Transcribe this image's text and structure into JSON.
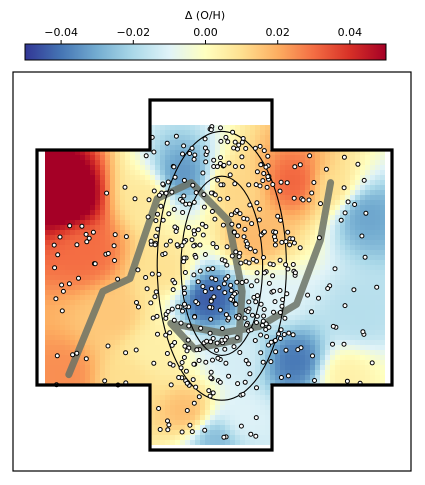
{
  "chart_data": {
    "type": "heatmap",
    "colorbar": {
      "label": "Δ (O/H)",
      "range": [
        -0.05,
        0.05
      ],
      "ticks": [
        -0.04,
        -0.02,
        0.0,
        0.02,
        0.04
      ],
      "tick_labels": [
        "−0.04",
        "−0.02",
        "0.00",
        "0.02",
        "0.04"
      ],
      "colormap": "RdYlBu_r",
      "placement": "top"
    },
    "axes": {
      "frame": true,
      "ticks": false,
      "grid": false
    },
    "field_sources": [
      {
        "x": 0.06,
        "y": 0.78,
        "v": 0.06
      },
      {
        "x": 0.12,
        "y": 0.6,
        "v": 0.03
      },
      {
        "x": 0.06,
        "y": 0.22,
        "v": 0.025
      },
      {
        "x": 0.2,
        "y": 0.4,
        "v": 0.015
      },
      {
        "x": 0.3,
        "y": 0.78,
        "v": 0.008
      },
      {
        "x": 0.4,
        "y": 0.84,
        "v": -0.035
      },
      {
        "x": 0.56,
        "y": 0.8,
        "v": 0.012
      },
      {
        "x": 0.74,
        "y": 0.82,
        "v": 0.032
      },
      {
        "x": 0.84,
        "y": 0.8,
        "v": 0.01
      },
      {
        "x": 0.94,
        "y": 0.72,
        "v": -0.032
      },
      {
        "x": 0.92,
        "y": 0.4,
        "v": -0.018
      },
      {
        "x": 0.88,
        "y": 0.22,
        "v": 0.005
      },
      {
        "x": 0.74,
        "y": 0.26,
        "v": -0.04
      },
      {
        "x": 0.48,
        "y": 0.46,
        "v": -0.045
      },
      {
        "x": 0.36,
        "y": 0.54,
        "v": 0.01
      },
      {
        "x": 0.62,
        "y": 0.64,
        "v": 0.018
      },
      {
        "x": 0.32,
        "y": 0.3,
        "v": 0.005
      },
      {
        "x": 0.56,
        "y": 0.28,
        "v": -0.012
      },
      {
        "x": 0.58,
        "y": 0.08,
        "v": -0.01
      },
      {
        "x": 0.42,
        "y": 0.1,
        "v": 0.018
      },
      {
        "x": 0.5,
        "y": 0.02,
        "v": -0.028
      },
      {
        "x": 0.24,
        "y": 0.2,
        "v": 0.01
      },
      {
        "x": 0.68,
        "y": 0.46,
        "v": -0.01
      }
    ],
    "trace_path": [
      {
        "x": 0.07,
        "y": 0.22
      },
      {
        "x": 0.17,
        "y": 0.48
      },
      {
        "x": 0.25,
        "y": 0.52
      },
      {
        "x": 0.33,
        "y": 0.77
      },
      {
        "x": 0.43,
        "y": 0.82
      },
      {
        "x": 0.54,
        "y": 0.7
      },
      {
        "x": 0.58,
        "y": 0.48
      },
      {
        "x": 0.57,
        "y": 0.33
      },
      {
        "x": 0.44,
        "y": 0.3
      },
      {
        "x": 0.37,
        "y": 0.38
      },
      {
        "x": 0.52,
        "y": 0.35
      },
      {
        "x": 0.63,
        "y": 0.37
      },
      {
        "x": 0.74,
        "y": 0.44
      },
      {
        "x": 0.81,
        "y": 0.64
      },
      {
        "x": 0.84,
        "y": 0.82
      }
    ],
    "ellipses": [
      {
        "cx": 0.52,
        "cy": 0.56,
        "rx": 0.19,
        "ry": 0.42
      },
      {
        "cx": 0.52,
        "cy": 0.56,
        "rx": 0.12,
        "ry": 0.28
      }
    ]
  },
  "colors": {
    "trace": "#6b7266",
    "ellipse": "#000000",
    "marker_edge": "#000000",
    "marker_face": "#ffffff",
    "outline": "#000000"
  }
}
